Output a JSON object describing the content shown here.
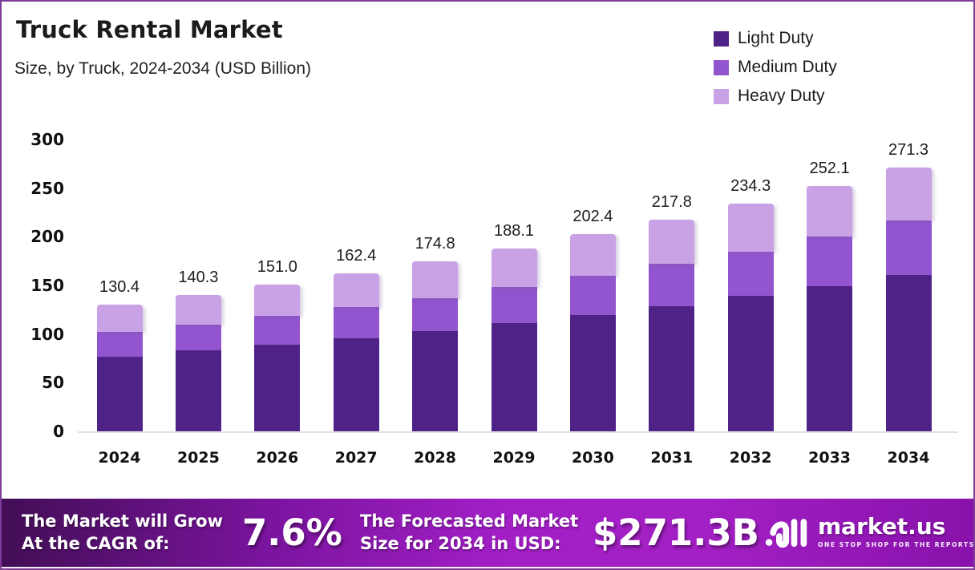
{
  "header": {
    "title": "Truck Rental Market",
    "subtitle": "Size, by Truck, 2024-2034 (USD Billion)"
  },
  "legend": {
    "position": "top-right",
    "items": [
      {
        "label": "Light Duty",
        "color": "#4e2287"
      },
      {
        "label": "Medium Duty",
        "color": "#9355cf"
      },
      {
        "label": "Heavy Duty",
        "color": "#c9a2e6"
      }
    ]
  },
  "chart_data": {
    "type": "bar",
    "stacked": true,
    "title": "Truck Rental Market",
    "subtitle": "Size, by Truck, 2024-2034 (USD Billion)",
    "xlabel": "",
    "ylabel": "",
    "ylim": [
      0,
      300
    ],
    "yticks": [
      0,
      50,
      100,
      150,
      200,
      250,
      300
    ],
    "grid": false,
    "legend_position": "top-right",
    "categories": [
      "2024",
      "2025",
      "2026",
      "2027",
      "2028",
      "2029",
      "2030",
      "2031",
      "2032",
      "2033",
      "2034"
    ],
    "series": [
      {
        "name": "Light Duty",
        "color": "#4e2287",
        "values": [
          77.0,
          83.0,
          89.0,
          96.0,
          103.0,
          111.0,
          119.5,
          128.5,
          139.0,
          149.5,
          161.0
        ]
      },
      {
        "name": "Medium Duty",
        "color": "#9355cf",
        "values": [
          25.0,
          27.0,
          29.5,
          31.5,
          34.0,
          37.0,
          40.0,
          43.5,
          46.0,
          50.5,
          55.5
        ]
      },
      {
        "name": "Heavy Duty",
        "color": "#c9a2e6",
        "values": [
          28.4,
          30.3,
          32.5,
          34.9,
          37.8,
          40.1,
          42.9,
          45.8,
          49.3,
          52.1,
          54.8
        ]
      }
    ],
    "total_labels": [
      "130.4",
      "140.3",
      "151.0",
      "162.4",
      "174.8",
      "188.1",
      "202.4",
      "217.8",
      "234.3",
      "252.1",
      "271.3"
    ]
  },
  "banner": {
    "cagr_label_line1": "The Market will Grow",
    "cagr_label_line2": "At the CAGR of:",
    "cagr_value": "7.6%",
    "forecast_label_line1": "The Forecasted Market",
    "forecast_label_line2": "Size for 2034 in USD:",
    "forecast_value": "$271.3B",
    "brand_name": "market.us",
    "brand_tagline": "ONE STOP SHOP FOR THE REPORTS"
  },
  "colors": {
    "frame_border": "#7d3c98",
    "banner_gradient_left": "#420e55",
    "banner_gradient_mid": "#a21fc6",
    "banner_gradient_right": "#8812ab",
    "text": "#1b1b1b",
    "baseline": "#e3e0e6"
  }
}
